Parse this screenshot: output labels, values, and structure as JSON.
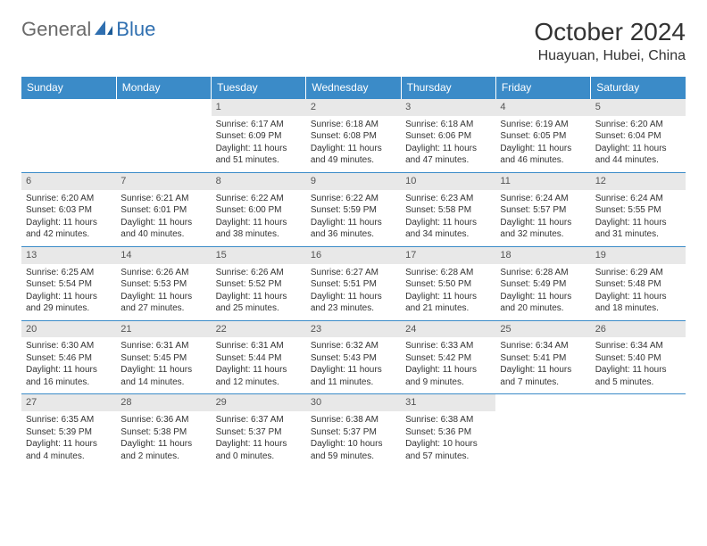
{
  "logo": {
    "text1": "General",
    "text2": "Blue"
  },
  "title": "October 2024",
  "location": "Huayuan, Hubei, China",
  "colors": {
    "header_bg": "#3b8bc8",
    "header_fg": "#ffffff",
    "daynum_bg": "#e8e8e8",
    "border": "#3b8bc8",
    "text": "#333333",
    "logo_gray": "#6a6a6a",
    "logo_blue": "#2f6fb0"
  },
  "weekdays": [
    "Sunday",
    "Monday",
    "Tuesday",
    "Wednesday",
    "Thursday",
    "Friday",
    "Saturday"
  ],
  "weeks": [
    [
      null,
      null,
      {
        "num": "1",
        "sunrise": "Sunrise: 6:17 AM",
        "sunset": "Sunset: 6:09 PM",
        "day1": "Daylight: 11 hours",
        "day2": "and 51 minutes."
      },
      {
        "num": "2",
        "sunrise": "Sunrise: 6:18 AM",
        "sunset": "Sunset: 6:08 PM",
        "day1": "Daylight: 11 hours",
        "day2": "and 49 minutes."
      },
      {
        "num": "3",
        "sunrise": "Sunrise: 6:18 AM",
        "sunset": "Sunset: 6:06 PM",
        "day1": "Daylight: 11 hours",
        "day2": "and 47 minutes."
      },
      {
        "num": "4",
        "sunrise": "Sunrise: 6:19 AM",
        "sunset": "Sunset: 6:05 PM",
        "day1": "Daylight: 11 hours",
        "day2": "and 46 minutes."
      },
      {
        "num": "5",
        "sunrise": "Sunrise: 6:20 AM",
        "sunset": "Sunset: 6:04 PM",
        "day1": "Daylight: 11 hours",
        "day2": "and 44 minutes."
      }
    ],
    [
      {
        "num": "6",
        "sunrise": "Sunrise: 6:20 AM",
        "sunset": "Sunset: 6:03 PM",
        "day1": "Daylight: 11 hours",
        "day2": "and 42 minutes."
      },
      {
        "num": "7",
        "sunrise": "Sunrise: 6:21 AM",
        "sunset": "Sunset: 6:01 PM",
        "day1": "Daylight: 11 hours",
        "day2": "and 40 minutes."
      },
      {
        "num": "8",
        "sunrise": "Sunrise: 6:22 AM",
        "sunset": "Sunset: 6:00 PM",
        "day1": "Daylight: 11 hours",
        "day2": "and 38 minutes."
      },
      {
        "num": "9",
        "sunrise": "Sunrise: 6:22 AM",
        "sunset": "Sunset: 5:59 PM",
        "day1": "Daylight: 11 hours",
        "day2": "and 36 minutes."
      },
      {
        "num": "10",
        "sunrise": "Sunrise: 6:23 AM",
        "sunset": "Sunset: 5:58 PM",
        "day1": "Daylight: 11 hours",
        "day2": "and 34 minutes."
      },
      {
        "num": "11",
        "sunrise": "Sunrise: 6:24 AM",
        "sunset": "Sunset: 5:57 PM",
        "day1": "Daylight: 11 hours",
        "day2": "and 32 minutes."
      },
      {
        "num": "12",
        "sunrise": "Sunrise: 6:24 AM",
        "sunset": "Sunset: 5:55 PM",
        "day1": "Daylight: 11 hours",
        "day2": "and 31 minutes."
      }
    ],
    [
      {
        "num": "13",
        "sunrise": "Sunrise: 6:25 AM",
        "sunset": "Sunset: 5:54 PM",
        "day1": "Daylight: 11 hours",
        "day2": "and 29 minutes."
      },
      {
        "num": "14",
        "sunrise": "Sunrise: 6:26 AM",
        "sunset": "Sunset: 5:53 PM",
        "day1": "Daylight: 11 hours",
        "day2": "and 27 minutes."
      },
      {
        "num": "15",
        "sunrise": "Sunrise: 6:26 AM",
        "sunset": "Sunset: 5:52 PM",
        "day1": "Daylight: 11 hours",
        "day2": "and 25 minutes."
      },
      {
        "num": "16",
        "sunrise": "Sunrise: 6:27 AM",
        "sunset": "Sunset: 5:51 PM",
        "day1": "Daylight: 11 hours",
        "day2": "and 23 minutes."
      },
      {
        "num": "17",
        "sunrise": "Sunrise: 6:28 AM",
        "sunset": "Sunset: 5:50 PM",
        "day1": "Daylight: 11 hours",
        "day2": "and 21 minutes."
      },
      {
        "num": "18",
        "sunrise": "Sunrise: 6:28 AM",
        "sunset": "Sunset: 5:49 PM",
        "day1": "Daylight: 11 hours",
        "day2": "and 20 minutes."
      },
      {
        "num": "19",
        "sunrise": "Sunrise: 6:29 AM",
        "sunset": "Sunset: 5:48 PM",
        "day1": "Daylight: 11 hours",
        "day2": "and 18 minutes."
      }
    ],
    [
      {
        "num": "20",
        "sunrise": "Sunrise: 6:30 AM",
        "sunset": "Sunset: 5:46 PM",
        "day1": "Daylight: 11 hours",
        "day2": "and 16 minutes."
      },
      {
        "num": "21",
        "sunrise": "Sunrise: 6:31 AM",
        "sunset": "Sunset: 5:45 PM",
        "day1": "Daylight: 11 hours",
        "day2": "and 14 minutes."
      },
      {
        "num": "22",
        "sunrise": "Sunrise: 6:31 AM",
        "sunset": "Sunset: 5:44 PM",
        "day1": "Daylight: 11 hours",
        "day2": "and 12 minutes."
      },
      {
        "num": "23",
        "sunrise": "Sunrise: 6:32 AM",
        "sunset": "Sunset: 5:43 PM",
        "day1": "Daylight: 11 hours",
        "day2": "and 11 minutes."
      },
      {
        "num": "24",
        "sunrise": "Sunrise: 6:33 AM",
        "sunset": "Sunset: 5:42 PM",
        "day1": "Daylight: 11 hours",
        "day2": "and 9 minutes."
      },
      {
        "num": "25",
        "sunrise": "Sunrise: 6:34 AM",
        "sunset": "Sunset: 5:41 PM",
        "day1": "Daylight: 11 hours",
        "day2": "and 7 minutes."
      },
      {
        "num": "26",
        "sunrise": "Sunrise: 6:34 AM",
        "sunset": "Sunset: 5:40 PM",
        "day1": "Daylight: 11 hours",
        "day2": "and 5 minutes."
      }
    ],
    [
      {
        "num": "27",
        "sunrise": "Sunrise: 6:35 AM",
        "sunset": "Sunset: 5:39 PM",
        "day1": "Daylight: 11 hours",
        "day2": "and 4 minutes."
      },
      {
        "num": "28",
        "sunrise": "Sunrise: 6:36 AM",
        "sunset": "Sunset: 5:38 PM",
        "day1": "Daylight: 11 hours",
        "day2": "and 2 minutes."
      },
      {
        "num": "29",
        "sunrise": "Sunrise: 6:37 AM",
        "sunset": "Sunset: 5:37 PM",
        "day1": "Daylight: 11 hours",
        "day2": "and 0 minutes."
      },
      {
        "num": "30",
        "sunrise": "Sunrise: 6:38 AM",
        "sunset": "Sunset: 5:37 PM",
        "day1": "Daylight: 10 hours",
        "day2": "and 59 minutes."
      },
      {
        "num": "31",
        "sunrise": "Sunrise: 6:38 AM",
        "sunset": "Sunset: 5:36 PM",
        "day1": "Daylight: 10 hours",
        "day2": "and 57 minutes."
      },
      null,
      null
    ]
  ]
}
